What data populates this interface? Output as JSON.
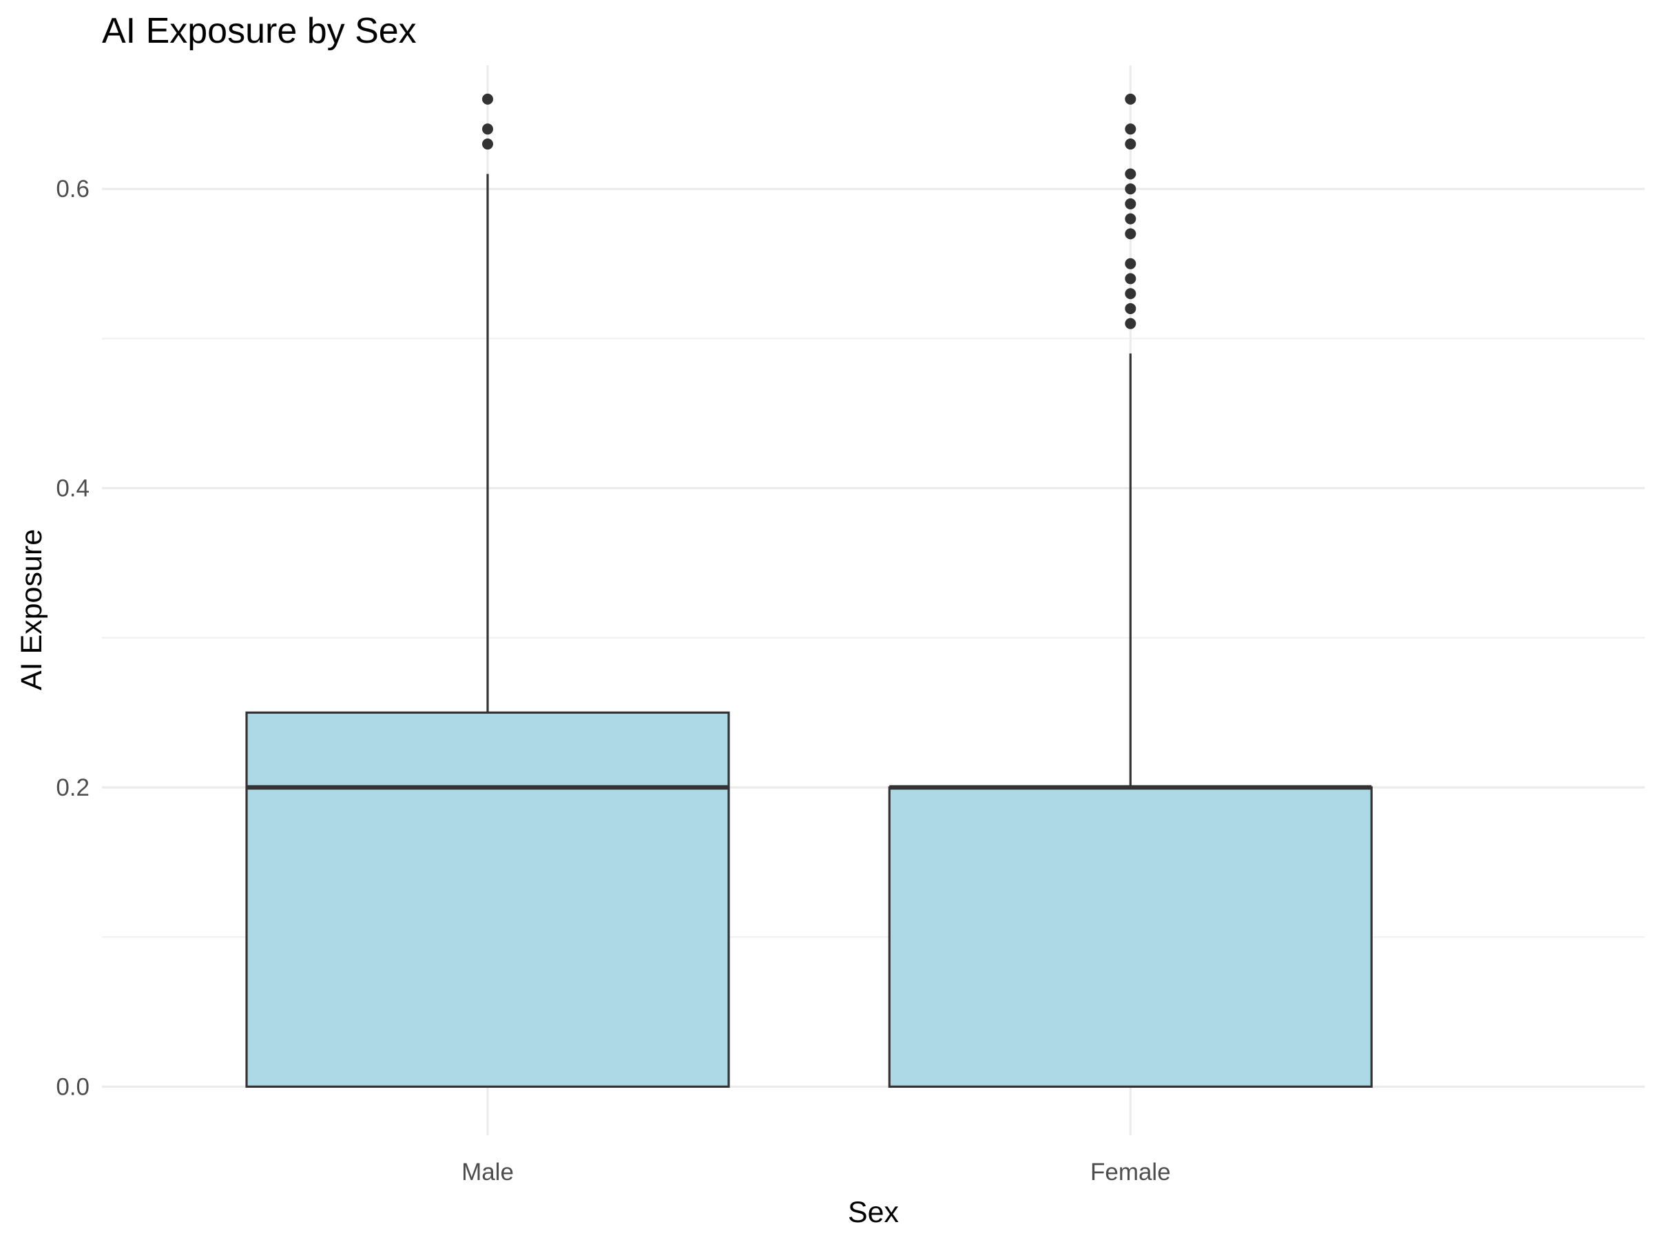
{
  "chart_data": {
    "type": "boxplot",
    "title": "AI Exposure by Sex",
    "xlabel": "Sex",
    "ylabel": "AI Exposure",
    "ylim": [
      -0.0325,
      0.6825
    ],
    "y_ticks": [
      0.0,
      0.2,
      0.4,
      0.6
    ],
    "y_tick_labels": [
      "0.0",
      "0.2",
      "0.4",
      "0.6"
    ],
    "y_minor_ticks": [
      0.1,
      0.3,
      0.5
    ],
    "grid": true,
    "legend": "none",
    "fill_color": "#add8e6",
    "line_color": "#333333",
    "categories": [
      "Male",
      "Female"
    ],
    "boxes": [
      {
        "category": "Male",
        "min": 0.0,
        "q1": 0.0,
        "median": 0.2,
        "q3": 0.25,
        "max": 0.61,
        "outliers": [
          0.63,
          0.64,
          0.66
        ]
      },
      {
        "category": "Female",
        "min": 0.0,
        "q1": 0.0,
        "median": 0.2,
        "q3": 0.2,
        "max": 0.49,
        "outliers": [
          0.51,
          0.52,
          0.53,
          0.54,
          0.55,
          0.57,
          0.58,
          0.59,
          0.6,
          0.61,
          0.63,
          0.64,
          0.66
        ]
      }
    ]
  }
}
